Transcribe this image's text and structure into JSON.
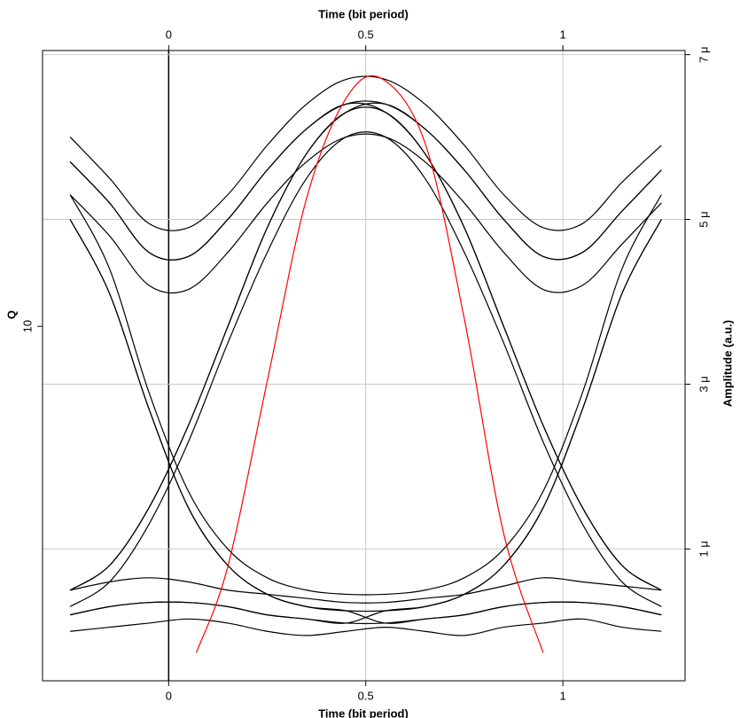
{
  "chart_data": {
    "type": "line",
    "xlabel": "Time (bit period)",
    "ylabel": "Q",
    "y2label": "Amplitude (a.u.)",
    "xlim": [
      -0.32,
      1.31
    ],
    "xticks": [
      0,
      0.5,
      1
    ],
    "ylim": [
      1,
      60
    ],
    "yticks": [
      10
    ],
    "ylog": true,
    "y2lim": [
      -0.6,
      7.05
    ],
    "y2ticks": [
      {
        "value": 1,
        "label": "1 μ"
      },
      {
        "value": 3,
        "label": "3 μ"
      },
      {
        "value": 5,
        "label": "5 μ"
      },
      {
        "value": 7,
        "label": "7 μ"
      }
    ],
    "grid": true,
    "x": [
      -0.25,
      -0.15,
      -0.05,
      0.05,
      0.15,
      0.25,
      0.35,
      0.45,
      0.55,
      0.65,
      0.75,
      0.85,
      0.95,
      1.05,
      1.15,
      1.25
    ],
    "series": [
      {
        "color": "#000000",
        "axis": "y2",
        "values": [
          5.7,
          5.2,
          4.6,
          4.55,
          5.0,
          5.6,
          6.1,
          6.4,
          6.4,
          6.1,
          5.6,
          5.0,
          4.55,
          4.6,
          5.1,
          5.6
        ]
      },
      {
        "color": "#000000",
        "axis": "y2",
        "values": [
          6.0,
          5.5,
          4.95,
          4.9,
          5.3,
          5.9,
          6.4,
          6.7,
          6.7,
          6.4,
          5.9,
          5.3,
          4.9,
          4.95,
          5.45,
          5.9
        ]
      },
      {
        "color": "#000000",
        "axis": "y2",
        "values": [
          5.3,
          4.8,
          4.2,
          4.15,
          4.6,
          5.2,
          5.7,
          6.0,
          6.0,
          5.7,
          5.2,
          4.6,
          4.15,
          4.2,
          4.7,
          5.2
        ]
      },
      {
        "color": "#000000",
        "axis": "y2",
        "values": [
          0.5,
          0.8,
          1.5,
          2.5,
          3.7,
          4.9,
          5.8,
          6.3,
          6.4,
          6.1,
          5.6,
          5.0,
          4.55,
          4.6,
          5.1,
          5.6
        ]
      },
      {
        "color": "#000000",
        "axis": "y2",
        "values": [
          5.7,
          5.2,
          4.6,
          4.55,
          5.0,
          5.6,
          6.1,
          6.4,
          6.3,
          5.8,
          4.9,
          3.7,
          2.5,
          1.5,
          0.8,
          0.5
        ]
      },
      {
        "color": "#000000",
        "axis": "y2",
        "values": [
          0.5,
          0.8,
          1.5,
          2.5,
          3.7,
          4.9,
          5.8,
          6.3,
          6.3,
          5.8,
          4.9,
          3.7,
          2.5,
          1.5,
          0.8,
          0.5
        ]
      },
      {
        "color": "#000000",
        "axis": "y2",
        "values": [
          0.3,
          0.6,
          1.3,
          2.3,
          3.5,
          4.6,
          5.5,
          6.0,
          6.0,
          5.5,
          4.6,
          3.5,
          2.3,
          1.3,
          0.6,
          0.3
        ]
      },
      {
        "color": "#000000",
        "axis": "y2",
        "values": [
          5.0,
          4.1,
          2.7,
          1.5,
          0.8,
          0.45,
          0.3,
          0.25,
          0.25,
          0.3,
          0.45,
          0.8,
          1.5,
          2.7,
          4.1,
          5.0
        ]
      },
      {
        "color": "#000000",
        "axis": "y2",
        "values": [
          5.3,
          4.4,
          2.9,
          1.7,
          1.0,
          0.65,
          0.5,
          0.45,
          0.45,
          0.5,
          0.65,
          1.0,
          1.7,
          2.9,
          4.4,
          5.3
        ]
      },
      {
        "color": "#000000",
        "axis": "y2",
        "values": [
          5.0,
          4.1,
          2.7,
          1.5,
          0.8,
          0.45,
          0.3,
          0.25,
          0.1,
          0.15,
          0.2,
          0.3,
          0.35,
          0.35,
          0.3,
          0.2
        ]
      },
      {
        "color": "#000000",
        "axis": "y2",
        "values": [
          0.2,
          0.3,
          0.35,
          0.35,
          0.3,
          0.2,
          0.15,
          0.1,
          0.25,
          0.3,
          0.45,
          0.8,
          1.5,
          2.7,
          4.1,
          5.0
        ]
      },
      {
        "color": "#000000",
        "axis": "y2",
        "values": [
          0.2,
          0.3,
          0.35,
          0.35,
          0.3,
          0.2,
          0.15,
          0.1,
          0.1,
          0.15,
          0.2,
          0.3,
          0.35,
          0.35,
          0.3,
          0.2
        ]
      },
      {
        "color": "#000000",
        "axis": "y2",
        "values": [
          0.5,
          0.6,
          0.65,
          0.6,
          0.5,
          0.45,
          0.4,
          0.35,
          0.35,
          0.4,
          0.45,
          0.55,
          0.65,
          0.6,
          0.55,
          0.5
        ]
      },
      {
        "color": "#000000",
        "axis": "y2",
        "values": [
          0.0,
          0.05,
          0.1,
          0.15,
          0.1,
          0.0,
          -0.05,
          0.0,
          0.05,
          0.0,
          -0.05,
          0.05,
          0.1,
          0.15,
          0.05,
          0.0
        ]
      },
      {
        "color": "#ff0000",
        "axis": "y",
        "x": [
          0.07,
          0.15,
          0.25,
          0.35,
          0.45,
          0.54,
          0.65,
          0.75,
          0.85,
          0.95
        ],
        "values": [
          1.2,
          2.1,
          7,
          23,
          44,
          50,
          33,
          10.5,
          2.6,
          1.2
        ]
      }
    ]
  }
}
